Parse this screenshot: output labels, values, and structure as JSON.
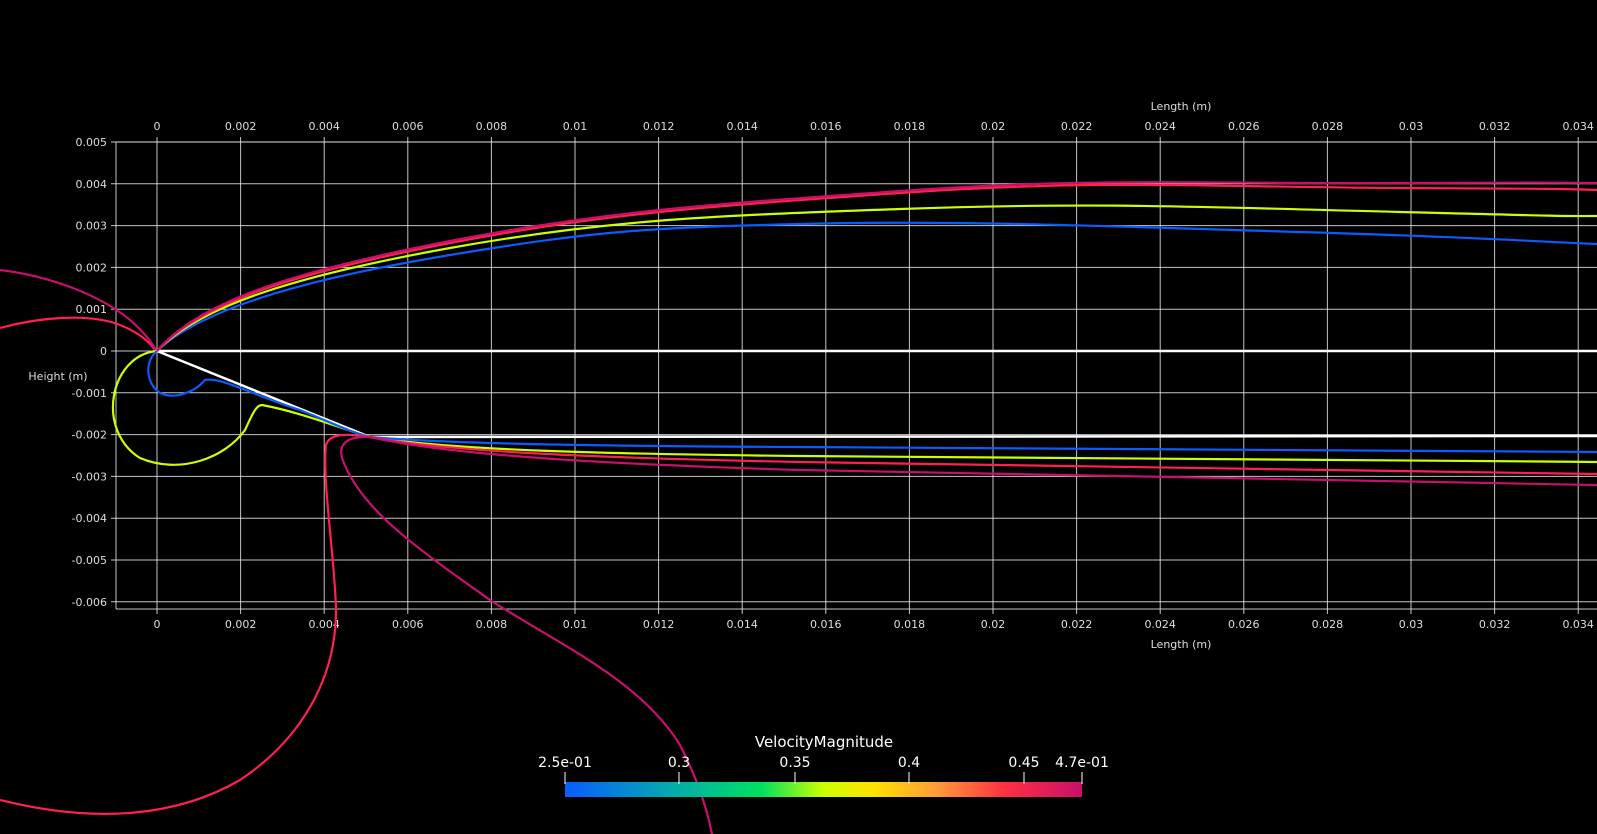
{
  "x_axis": {
    "title": "Length (m)",
    "ticks": [
      "0",
      "0.002",
      "0.004",
      "0.006",
      "0.008",
      "0.01",
      "0.012",
      "0.014",
      "0.016",
      "0.018",
      "0.02",
      "0.022",
      "0.024",
      "0.026",
      "0.028",
      "0.03",
      "0.032",
      "0.034"
    ]
  },
  "y_axis": {
    "title": "Height (m)",
    "ticks": [
      "0.005",
      "0.004",
      "0.003",
      "0.002",
      "0.001",
      "0",
      "-0.001",
      "-0.002",
      "-0.003",
      "-0.004",
      "-0.005",
      "-0.006"
    ]
  },
  "colorbar": {
    "title": "VelocityMagnitude",
    "labels": [
      "2.5e-01",
      "0.3",
      "0.35",
      "0.4",
      "0.45",
      "4.7e-01"
    ]
  }
}
